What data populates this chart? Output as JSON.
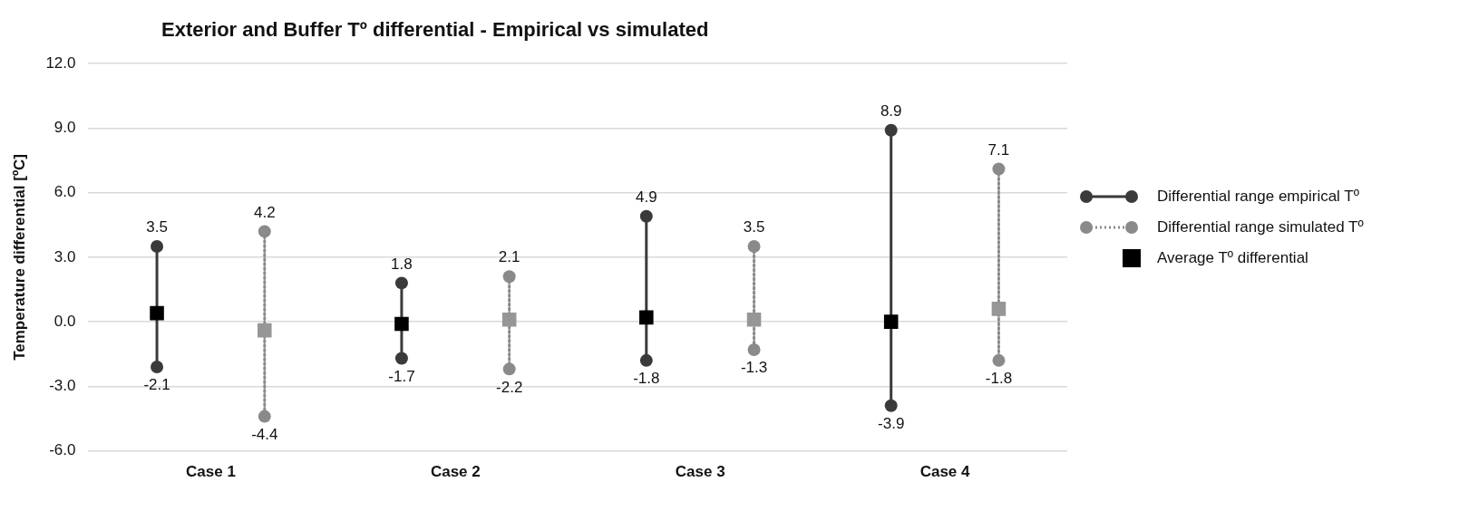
{
  "chart_data": {
    "type": "line",
    "title": "Exterior and Buffer Tº differential - Empirical vs simulated",
    "ylabel": "Temperature differential [ºC]",
    "categories": [
      "Case 1",
      "Case 2",
      "Case 3",
      "Case 4"
    ],
    "series": [
      {
        "name": "Differential range empirical Tº",
        "color": "#3a3a3a",
        "x": [
          "Case 1",
          "Case 1",
          "Case 1",
          "Case 2",
          "Case 2",
          "Case 2",
          "Case 3",
          "Case 3",
          "Case 3",
          "Case 4",
          "Case 4"
        ],
        "values": [
          3.5,
          -2.1,
          null,
          1.8,
          -1.7,
          null,
          4.9,
          -1.8,
          null,
          8.9,
          -3.9
        ],
        "value_labels": [
          "3.5",
          "-2.1",
          null,
          "1.8",
          "-1.7",
          null,
          "4.9",
          "-1.8",
          null,
          "8.9",
          "-3.9"
        ],
        "line_style": "solid",
        "marker": "circle"
      },
      {
        "name": "Differential range simulated Tº",
        "color": "#8a8a8a",
        "x": [
          "Case 1",
          "Case 1",
          "Case 1",
          "Case 2",
          "Case 2",
          "Case 2",
          "Case 3",
          "Case 3",
          "Case 3",
          "Case 4",
          "Case 4"
        ],
        "values": [
          4.2,
          -4.4,
          null,
          2.1,
          -2.2,
          null,
          3.5,
          -1.3,
          null,
          7.1,
          -1.8
        ],
        "value_labels": [
          "4.2",
          "-4.4",
          null,
          "2.1",
          "-2.2",
          null,
          "3.5",
          "-1.3",
          null,
          "7.1",
          "-1.8"
        ],
        "line_style": "dotted",
        "marker": "circle"
      },
      {
        "name": "Average Tº differential",
        "type": "scatter",
        "color": "#000000",
        "values": [
          0.4,
          -0.1,
          0.2,
          0.0
        ],
        "marker": "square"
      },
      {
        "type": "scatter",
        "color": "#969696",
        "values": [
          -0.4,
          0.1,
          0.1,
          0.6
        ],
        "marker": "square"
      }
    ],
    "ylim": [
      -6,
      12
    ],
    "yticks": [
      {
        "value": -6,
        "label": "-6.0"
      },
      {
        "value": -3,
        "label": "-3.0"
      },
      {
        "value": 0,
        "label": "0.0"
      },
      {
        "value": 3,
        "label": "3.0"
      },
      {
        "value": 6,
        "label": "6.0"
      },
      {
        "value": 9,
        "label": "9.0"
      },
      {
        "value": 12,
        "label": "12.0"
      }
    ],
    "grid": "y",
    "legend": "right"
  }
}
